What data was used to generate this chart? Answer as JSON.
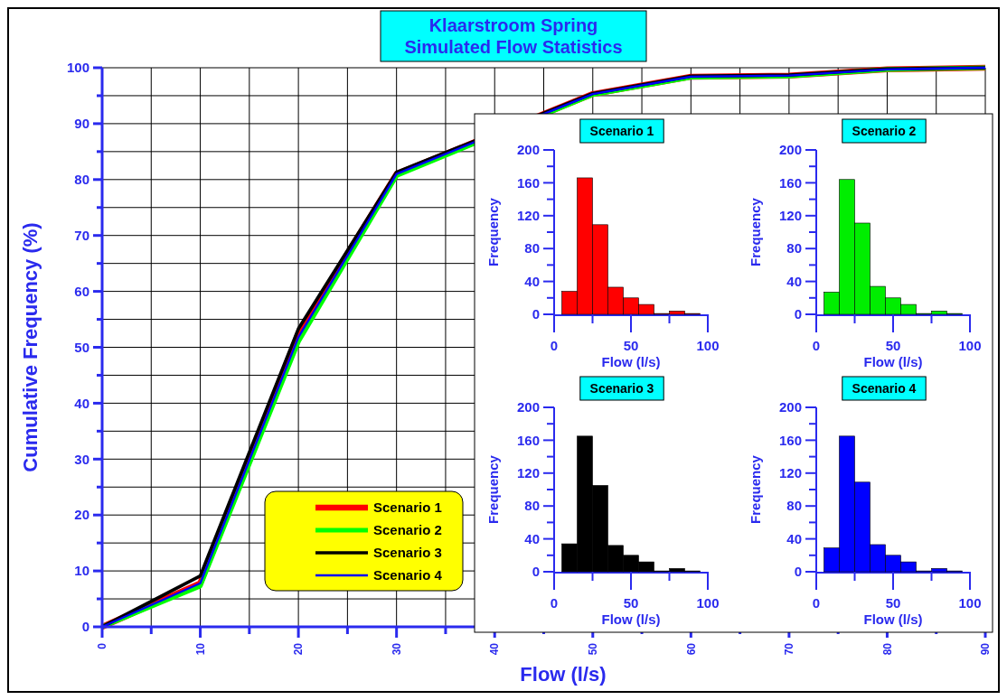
{
  "chart_data": [
    {
      "type": "line",
      "title": "Klaarstroom Spring",
      "subtitle": "Simulated Flow Statistics",
      "xlabel": "Flow (l/s)",
      "ylabel": "Cumulative Frequency (%)",
      "x": [
        0,
        10,
        20,
        30,
        50,
        60,
        70,
        80,
        90
      ],
      "series": [
        {
          "name": "Scenario 1",
          "color": "#ff0000",
          "values": [
            0,
            7.8,
            52.5,
            81,
            95.3,
            98.4,
            98.6,
            99.7,
            100
          ]
        },
        {
          "name": "Scenario 2",
          "color": "#00ff00",
          "values": [
            0,
            7.3,
            51,
            80.7,
            95.2,
            98.3,
            98.5,
            99.7,
            100
          ]
        },
        {
          "name": "Scenario 3",
          "color": "#000000",
          "values": [
            0,
            9.1,
            53.3,
            81.3,
            95.4,
            98.5,
            98.7,
            99.8,
            100
          ]
        },
        {
          "name": "Scenario 4",
          "color": "#0000ff",
          "values": [
            0,
            7.8,
            51.8,
            81,
            95.3,
            98.4,
            98.6,
            99.7,
            100
          ]
        }
      ],
      "xlim": [
        0,
        90
      ],
      "ylim": [
        0,
        100
      ],
      "xticks": [
        0,
        {
          "value": 5,
          "label": null
        },
        10,
        {
          "value": 15,
          "label": null
        },
        20,
        {
          "value": 25,
          "label": null
        },
        30,
        {
          "value": 35,
          "label": null
        },
        40,
        {
          "value": 45,
          "label": null
        },
        50,
        {
          "value": 55,
          "label": null
        },
        60,
        {
          "value": 65,
          "label": null
        },
        70,
        {
          "value": 75,
          "label": null
        },
        80,
        {
          "value": 85,
          "label": null
        },
        90
      ],
      "yticks": [
        0,
        {
          "value": 5,
          "label": null
        },
        10,
        {
          "value": 15,
          "label": null
        },
        20,
        {
          "value": 25,
          "label": null
        },
        30,
        {
          "value": 35,
          "label": null
        },
        40,
        {
          "value": 45,
          "label": null
        },
        50,
        {
          "value": 55,
          "label": null
        },
        60,
        {
          "value": 65,
          "label": null
        },
        70,
        {
          "value": 75,
          "label": null
        },
        80,
        {
          "value": 85,
          "label": null
        },
        90,
        {
          "value": 95,
          "label": null
        },
        100
      ],
      "grid": true,
      "legend": "bottom left",
      "line_style": "solid"
    },
    {
      "type": "histogram",
      "title": "Scenario 1",
      "xlabel": "Flow (l/s)",
      "ylabel": "Frequency",
      "color": "#ff0000",
      "bins": [
        5,
        15,
        25,
        35,
        45,
        55,
        65,
        75,
        85,
        95
      ],
      "values": [
        28,
        166,
        109,
        33,
        20,
        12,
        1,
        4,
        1
      ],
      "xlim": [
        0,
        100
      ],
      "ylim": [
        0,
        200
      ],
      "xticks": [
        0,
        {
          "value": 25,
          "label": null
        },
        50,
        {
          "value": 75,
          "label": null
        },
        100
      ],
      "yticks": [
        0,
        {
          "value": 20,
          "label": null
        },
        40,
        {
          "value": 60,
          "label": null
        },
        80,
        {
          "value": 100,
          "label": null
        },
        120,
        {
          "value": 140,
          "label": null
        },
        160,
        {
          "value": 180,
          "label": null
        },
        200
      ]
    },
    {
      "type": "histogram",
      "title": "Scenario 2",
      "xlabel": "Flow (l/s)",
      "ylabel": "Frequency",
      "color": "#00ee00",
      "bins": [
        5,
        15,
        25,
        35,
        45,
        55,
        65,
        75,
        85,
        95
      ],
      "values": [
        27,
        164,
        111,
        34,
        20,
        12,
        1,
        4,
        1
      ],
      "xlim": [
        0,
        100
      ],
      "ylim": [
        0,
        200
      ],
      "xticks": [
        0,
        {
          "value": 25,
          "label": null
        },
        50,
        {
          "value": 75,
          "label": null
        },
        100
      ],
      "yticks": [
        0,
        {
          "value": 20,
          "label": null
        },
        40,
        {
          "value": 60,
          "label": null
        },
        80,
        {
          "value": 100,
          "label": null
        },
        120,
        {
          "value": 140,
          "label": null
        },
        160,
        {
          "value": 180,
          "label": null
        },
        200
      ]
    },
    {
      "type": "histogram",
      "title": "Scenario 3",
      "xlabel": "Flow (l/s)",
      "ylabel": "Frequency",
      "color": "#000000",
      "bins": [
        5,
        15,
        25,
        35,
        45,
        55,
        65,
        75,
        85,
        95
      ],
      "values": [
        34,
        165,
        105,
        32,
        20,
        12,
        1,
        4,
        1
      ],
      "xlim": [
        0,
        100
      ],
      "ylim": [
        0,
        200
      ],
      "xticks": [
        0,
        {
          "value": 25,
          "label": null
        },
        50,
        {
          "value": 75,
          "label": null
        },
        100
      ],
      "yticks": [
        0,
        {
          "value": 20,
          "label": null
        },
        40,
        {
          "value": 60,
          "label": null
        },
        80,
        {
          "value": 100,
          "label": null
        },
        120,
        {
          "value": 140,
          "label": null
        },
        160,
        {
          "value": 180,
          "label": null
        },
        200
      ]
    },
    {
      "type": "histogram",
      "title": "Scenario 4",
      "xlabel": "Flow (l/s)",
      "ylabel": "Frequency",
      "color": "#0000ff",
      "bins": [
        5,
        15,
        25,
        35,
        45,
        55,
        65,
        75,
        85,
        95
      ],
      "values": [
        29,
        165,
        109,
        33,
        20,
        12,
        1,
        4,
        1
      ],
      "xlim": [
        0,
        100
      ],
      "ylim": [
        0,
        200
      ],
      "xticks": [
        0,
        {
          "value": 25,
          "label": null
        },
        50,
        {
          "value": 75,
          "label": null
        },
        100
      ],
      "yticks": [
        0,
        {
          "value": 20,
          "label": null
        },
        40,
        {
          "value": 60,
          "label": null
        },
        80,
        {
          "value": 100,
          "label": null
        },
        120,
        {
          "value": 140,
          "label": null
        },
        160,
        {
          "value": 180,
          "label": null
        },
        200
      ]
    }
  ]
}
